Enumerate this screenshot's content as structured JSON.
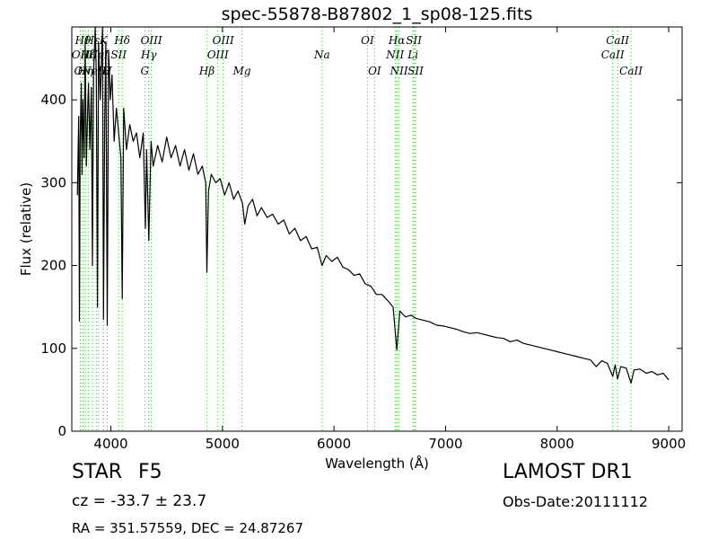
{
  "title": "spec-55878-B87802_1_sp08-125.fits",
  "info": {
    "class": "STAR",
    "subclass": "F5",
    "redshift": "cz = -33.7 ± 23.7",
    "coords": "RA = 351.57559, DEC = 24.87267",
    "survey": "LAMOST DR1",
    "obs_date": "Obs-Date:20111112"
  },
  "chart_data": {
    "type": "line",
    "title": "spec-55878-B87802_1_sp08-125.fits",
    "xlabel": "Wavelength (Å)",
    "ylabel": "Flux (relative)",
    "xlim": [
      3650,
      9120
    ],
    "ylim": [
      0,
      488
    ],
    "xticks": [
      4000,
      5000,
      6000,
      7000,
      8000,
      9000
    ],
    "yticks": [
      0,
      100,
      200,
      300,
      400
    ],
    "grid": false,
    "series_color": "#000000",
    "line_marker_color": "#3cb43c",
    "spectrum": [
      [
        3700,
        285
      ],
      [
        3712,
        380
      ],
      [
        3718,
        133
      ],
      [
        3725,
        350
      ],
      [
        3735,
        420
      ],
      [
        3742,
        310
      ],
      [
        3750,
        400
      ],
      [
        3760,
        330
      ],
      [
        3770,
        470
      ],
      [
        3780,
        320
      ],
      [
        3795,
        400
      ],
      [
        3800,
        420
      ],
      [
        3812,
        340
      ],
      [
        3825,
        415
      ],
      [
        3835,
        200
      ],
      [
        3845,
        430
      ],
      [
        3860,
        488
      ],
      [
        3870,
        430
      ],
      [
        3880,
        150
      ],
      [
        3890,
        470
      ],
      [
        3905,
        400
      ],
      [
        3925,
        488
      ],
      [
        3934,
        135
      ],
      [
        3945,
        380
      ],
      [
        3955,
        470
      ],
      [
        3968,
        128
      ],
      [
        3980,
        460
      ],
      [
        3995,
        400
      ],
      [
        4010,
        430
      ],
      [
        4030,
        350
      ],
      [
        4050,
        390
      ],
      [
        4070,
        360
      ],
      [
        4090,
        330
      ],
      [
        4102,
        160
      ],
      [
        4115,
        390
      ],
      [
        4140,
        340
      ],
      [
        4170,
        370
      ],
      [
        4200,
        350
      ],
      [
        4230,
        360
      ],
      [
        4260,
        330
      ],
      [
        4290,
        360
      ],
      [
        4310,
        245
      ],
      [
        4320,
        340
      ],
      [
        4340,
        230
      ],
      [
        4360,
        350
      ],
      [
        4380,
        320
      ],
      [
        4420,
        345
      ],
      [
        4460,
        325
      ],
      [
        4500,
        355
      ],
      [
        4540,
        330
      ],
      [
        4580,
        345
      ],
      [
        4620,
        320
      ],
      [
        4660,
        340
      ],
      [
        4700,
        315
      ],
      [
        4740,
        335
      ],
      [
        4780,
        310
      ],
      [
        4820,
        320
      ],
      [
        4850,
        300
      ],
      [
        4861,
        192
      ],
      [
        4875,
        290
      ],
      [
        4900,
        310
      ],
      [
        4940,
        300
      ],
      [
        4980,
        305
      ],
      [
        5020,
        285
      ],
      [
        5060,
        300
      ],
      [
        5100,
        280
      ],
      [
        5140,
        290
      ],
      [
        5180,
        275
      ],
      [
        5200,
        250
      ],
      [
        5230,
        272
      ],
      [
        5270,
        280
      ],
      [
        5310,
        260
      ],
      [
        5350,
        270
      ],
      [
        5400,
        258
      ],
      [
        5450,
        262
      ],
      [
        5500,
        250
      ],
      [
        5550,
        255
      ],
      [
        5600,
        238
      ],
      [
        5650,
        245
      ],
      [
        5700,
        230
      ],
      [
        5750,
        235
      ],
      [
        5800,
        220
      ],
      [
        5850,
        222
      ],
      [
        5893,
        200
      ],
      [
        5930,
        212
      ],
      [
        5980,
        205
      ],
      [
        6030,
        210
      ],
      [
        6080,
        198
      ],
      [
        6130,
        195
      ],
      [
        6180,
        188
      ],
      [
        6230,
        190
      ],
      [
        6280,
        178
      ],
      [
        6330,
        175
      ],
      [
        6380,
        165
      ],
      [
        6430,
        165
      ],
      [
        6480,
        158
      ],
      [
        6530,
        150
      ],
      [
        6563,
        98
      ],
      [
        6590,
        145
      ],
      [
        6640,
        138
      ],
      [
        6690,
        140
      ],
      [
        6740,
        136
      ],
      [
        6800,
        134
      ],
      [
        6860,
        132
      ],
      [
        6920,
        128
      ],
      [
        6980,
        127
      ],
      [
        7040,
        125
      ],
      [
        7100,
        123
      ],
      [
        7160,
        120
      ],
      [
        7220,
        118
      ],
      [
        7280,
        119
      ],
      [
        7340,
        117
      ],
      [
        7400,
        115
      ],
      [
        7460,
        113
      ],
      [
        7520,
        112
      ],
      [
        7580,
        108
      ],
      [
        7640,
        110
      ],
      [
        7700,
        106
      ],
      [
        7760,
        104
      ],
      [
        7820,
        102
      ],
      [
        7880,
        100
      ],
      [
        7940,
        98
      ],
      [
        8000,
        96
      ],
      [
        8060,
        94
      ],
      [
        8120,
        92
      ],
      [
        8180,
        90
      ],
      [
        8240,
        88
      ],
      [
        8300,
        86
      ],
      [
        8350,
        78
      ],
      [
        8400,
        85
      ],
      [
        8450,
        82
      ],
      [
        8498,
        66
      ],
      [
        8520,
        80
      ],
      [
        8542,
        63
      ],
      [
        8570,
        78
      ],
      [
        8620,
        76
      ],
      [
        8662,
        58
      ],
      [
        8690,
        74
      ],
      [
        8740,
        75
      ],
      [
        8800,
        70
      ],
      [
        8850,
        72
      ],
      [
        8900,
        68
      ],
      [
        8950,
        70
      ],
      [
        9000,
        62
      ]
    ],
    "line_markers": [
      {
        "x": 3726,
        "label": "OII",
        "row": 2
      },
      {
        "x": 3729,
        "label": "OI",
        "row": 3
      },
      {
        "x": 3750,
        "label": "Hθ",
        "row": 1
      },
      {
        "x": 3771,
        "label": "Hη",
        "row": 3
      },
      {
        "x": 3798,
        "label": "Hζ",
        "row": 2
      },
      {
        "x": 3835,
        "label": "Hε",
        "row": 1
      },
      {
        "x": 3869,
        "label": "NeIII",
        "row": 3
      },
      {
        "x": 3889,
        "label": "HeI",
        "row": 2
      },
      {
        "x": 3934,
        "label": "K",
        "row": 1
      },
      {
        "x": 3968,
        "label": "H",
        "row": 3
      },
      {
        "x": 4070,
        "label": "SII",
        "row": 2
      },
      {
        "x": 4102,
        "label": "Hδ",
        "row": 1
      },
      {
        "x": 4304,
        "label": "G",
        "row": 3
      },
      {
        "x": 4340,
        "label": "Hγ",
        "row": 2
      },
      {
        "x": 4363,
        "label": "OIII",
        "row": 1
      },
      {
        "x": 4861,
        "label": "Hβ",
        "row": 3
      },
      {
        "x": 4959,
        "label": "OIII",
        "row": 2
      },
      {
        "x": 5007,
        "label": "OIII",
        "row": 1
      },
      {
        "x": 5175,
        "label": "Mg",
        "row": 3
      },
      {
        "x": 5893,
        "label": "Na",
        "row": 2
      },
      {
        "x": 6300,
        "label": "OI",
        "row": 1
      },
      {
        "x": 6364,
        "label": "OI",
        "row": 3
      },
      {
        "x": 6548,
        "label": "NII",
        "row": 2
      },
      {
        "x": 6563,
        "label": "Hα",
        "row": 1
      },
      {
        "x": 6583,
        "label": "NII",
        "row": 3
      },
      {
        "x": 6708,
        "label": "Li",
        "row": 2
      },
      {
        "x": 6716,
        "label": "SII",
        "row": 1
      },
      {
        "x": 6731,
        "label": "SII",
        "row": 3
      },
      {
        "x": 8498,
        "label": "CaII",
        "row": 2
      },
      {
        "x": 8542,
        "label": "CaII",
        "row": 1
      },
      {
        "x": 8662,
        "label": "CaII",
        "row": 3
      }
    ]
  }
}
